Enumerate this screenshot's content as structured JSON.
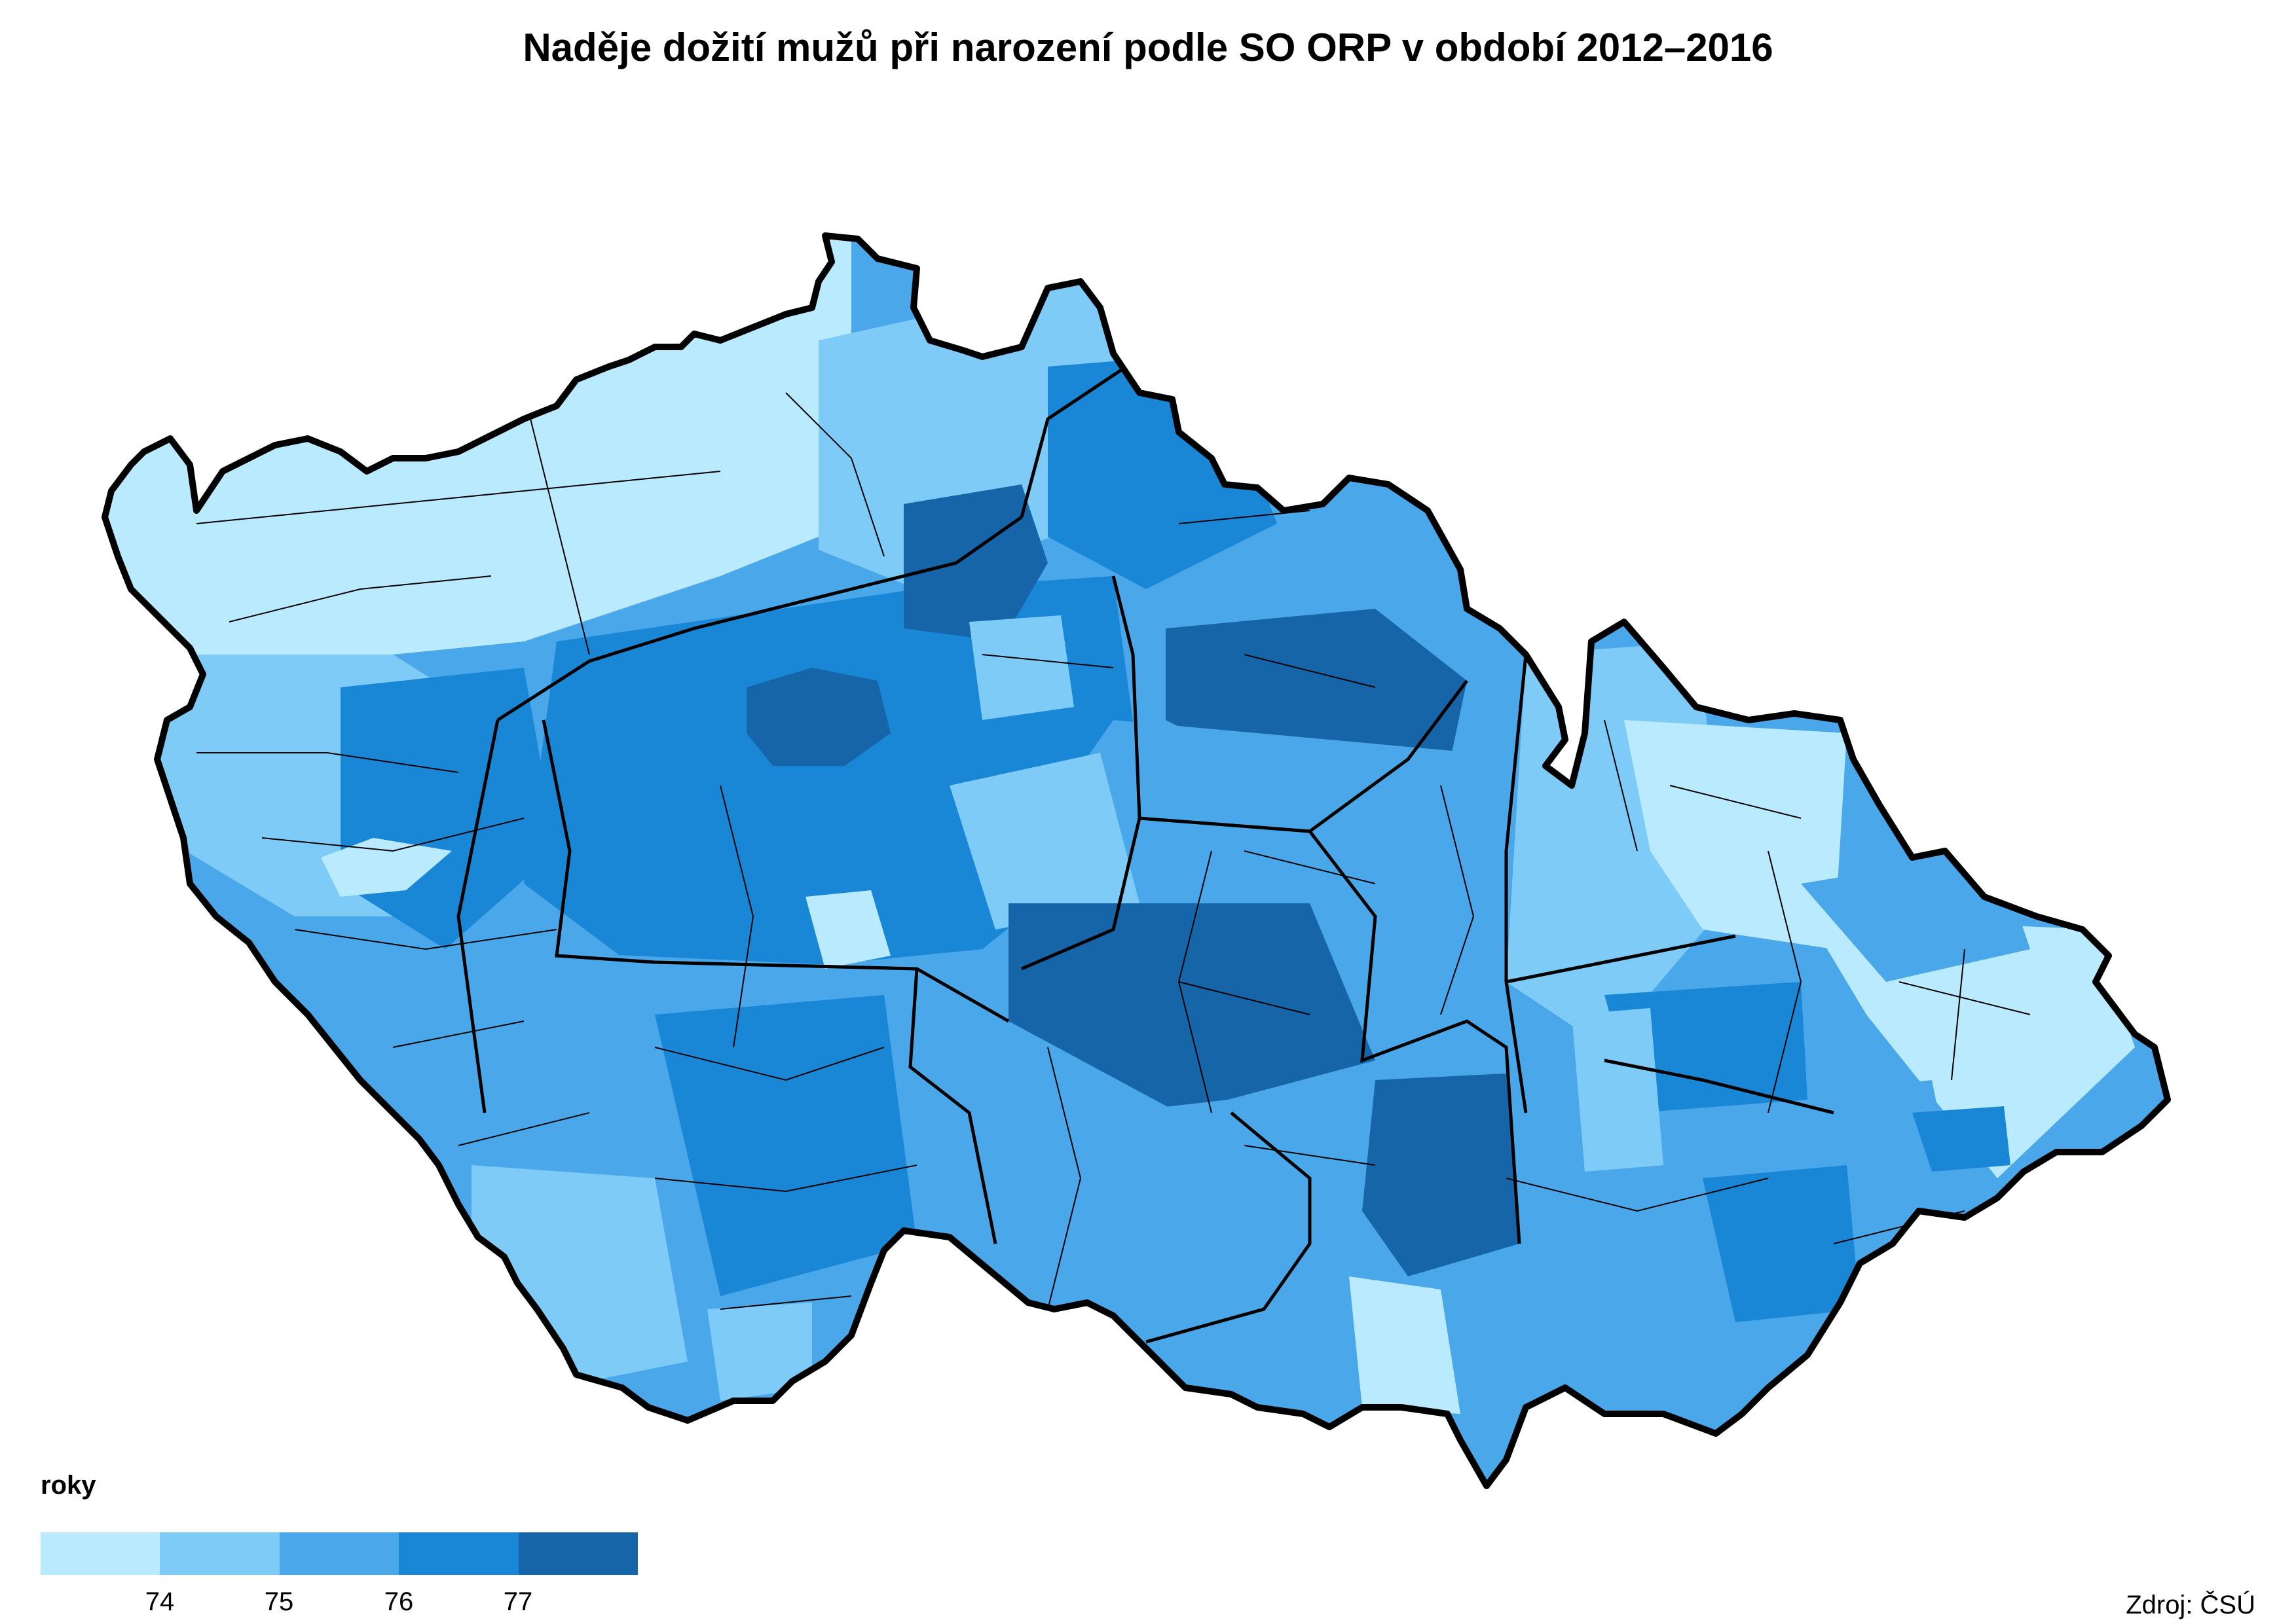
{
  "title": "Naděje dožití mužů při narození podle SO ORP v období 2012–2016",
  "legend": {
    "title": "roky",
    "classes": [
      {
        "color": "#b9eafe"
      },
      {
        "color": "#7ecbf8"
      },
      {
        "color": "#4aa8ea"
      },
      {
        "color": "#1a86d6"
      },
      {
        "color": "#1565a8"
      }
    ],
    "ticks": [
      "74",
      "75",
      "76",
      "77"
    ]
  },
  "source": "Zdroj: ČSÚ",
  "map": {
    "country": "Czech Republic",
    "unit_level": "SO ORP",
    "border_color": "#000000",
    "inner_border_color": "#000000",
    "dominant_regions": [
      {
        "name": "Prague",
        "class": 5
      },
      {
        "name": "Ústí/Karlovy Vary north-west",
        "class": 1
      },
      {
        "name": "Moravian-Silesian north-east",
        "class": 1
      },
      {
        "name": "Central Bohemia",
        "class": 4
      },
      {
        "name": "Vysočina",
        "class": 5
      },
      {
        "name": "South Bohemia",
        "class": 3
      },
      {
        "name": "South Moravia",
        "class": 3
      },
      {
        "name": "Zlín",
        "class": 3
      }
    ]
  }
}
